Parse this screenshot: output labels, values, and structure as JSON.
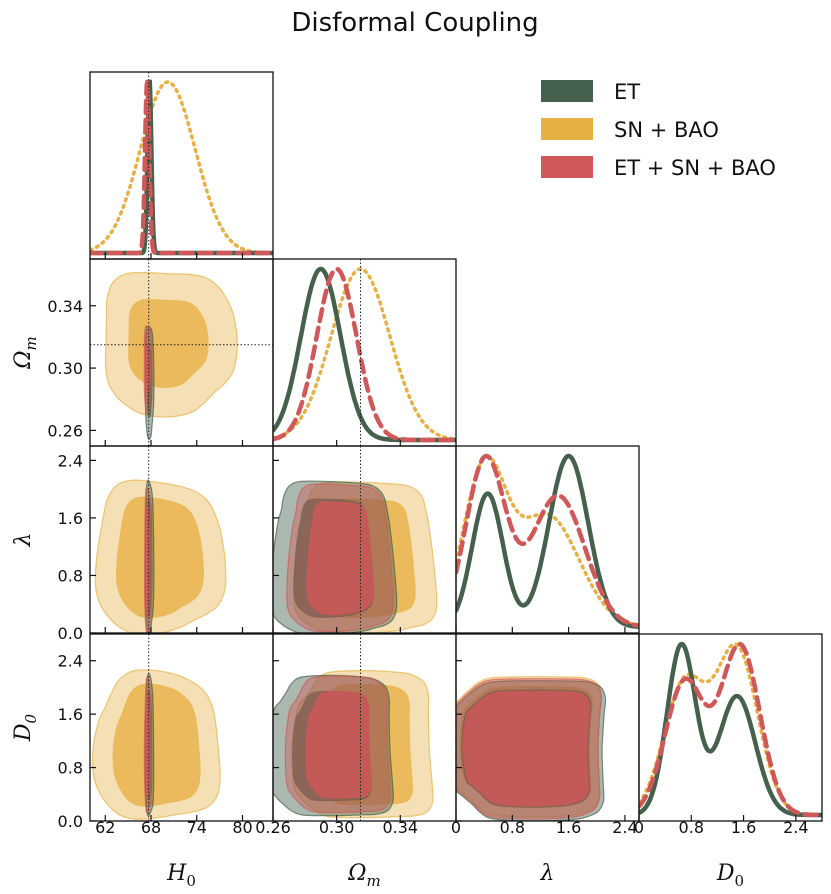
{
  "chart_data": {
    "type": "corner",
    "title": "Disformal Coupling",
    "parameters": [
      {
        "key": "H0",
        "label": "H",
        "sub": "0",
        "range": [
          60,
          84
        ],
        "ticks": [
          62,
          68,
          74,
          80
        ],
        "tick_labels": [
          "62",
          "68",
          "74",
          "80"
        ],
        "fiducial": 67.7
      },
      {
        "key": "Om",
        "label": "Ω",
        "sub": "m",
        "range": [
          0.26,
          0.375
        ],
        "ticks": [
          0.26,
          0.3,
          0.34
        ],
        "tick_labels": [
          "0.26",
          "0.30",
          "0.34"
        ],
        "y_ticks": [
          0.26,
          0.3,
          0.34
        ],
        "y_range": [
          0.25,
          0.37
        ],
        "extra_x_ticks": [
          0.26,
          0.3,
          0.34
        ],
        "extra_x_labels": [
          "0.26",
          "0.30",
          "0.34"
        ],
        "fiducial": 0.315
      },
      {
        "key": "lambda",
        "label": "λ",
        "sub": "",
        "range": [
          0,
          2.6
        ],
        "ticks": [
          0,
          0.8,
          1.6,
          2.4
        ],
        "tick_labels": [
          "0",
          "0.8",
          "1.6",
          "2.4"
        ],
        "y_ticks": [
          0.0,
          0.8,
          1.6,
          2.4
        ],
        "y_tick_labels": [
          "0.0",
          "0.8",
          "1.6",
          "2.4"
        ]
      },
      {
        "key": "D0",
        "label": "D",
        "sub": "0",
        "range": [
          0,
          2.8
        ],
        "ticks": [
          0,
          0.8,
          1.6,
          2.4
        ],
        "tick_labels": [
          "0",
          "0.8",
          "1.6",
          "2.4"
        ],
        "y_ticks": [
          0.0,
          0.8,
          1.6,
          2.4
        ],
        "y_tick_labels": [
          "0.0",
          "0.8",
          "1.6",
          "2.4"
        ]
      }
    ],
    "x_tick_row": {
      "H0": [
        "62",
        "68",
        "74",
        "80"
      ],
      "Om": [
        "0.26",
        "0.30",
        "0.34"
      ],
      "lambda": [
        "0",
        "0.8",
        "1.6",
        "2.4"
      ],
      "D0": [
        "0",
        "0.8",
        "1.6",
        "2.4"
      ]
    },
    "y_tick_col": {
      "Om": [
        "0.26",
        "0.30",
        "0.34"
      ],
      "lambda": [
        "0.0",
        "0.8",
        "1.6",
        "2.4"
      ],
      "D0": [
        "0.0",
        "0.8",
        "1.6",
        "2.4"
      ]
    },
    "legend": {
      "position": "top-right",
      "entries": [
        {
          "name": "ET",
          "color": "#45614d"
        },
        {
          "name": "SN + BAO",
          "color": "#e7b043"
        },
        {
          "name": "ET + SN + BAO",
          "color": "#d05858"
        }
      ]
    },
    "series_colors": {
      "ET": "#45614d",
      "SN + BAO": "#e7b043",
      "ET + SN + BAO": "#d05858"
    },
    "marginals": {
      "H0": {
        "ET": {
          "center": 67.8,
          "sigma": 0.25
        },
        "SN + BAO": {
          "center": 70.2,
          "sigma": 3.6
        },
        "ET + SN + BAO": {
          "center": 67.5,
          "sigma": 0.28
        }
      },
      "Om": {
        "ET": {
          "center": 0.29,
          "sigma": 0.0125
        },
        "SN + BAO": {
          "center": 0.315,
          "sigma": 0.0185
        },
        "ET + SN + BAO": {
          "center": 0.3,
          "sigma": 0.0125
        }
      },
      "lambda": {
        "ET": {
          "peaks": [
            [
              0.45,
              0.22,
              0.78
            ],
            [
              1.6,
              0.28,
              1.0
            ]
          ]
        },
        "SN + BAO": {
          "peaks": [
            [
              0.4,
              0.3,
              1.0
            ],
            [
              1.3,
              0.45,
              0.72
            ]
          ]
        },
        "ET + SN + BAO": {
          "peaks": [
            [
              0.42,
              0.28,
              0.97
            ],
            [
              1.45,
              0.38,
              0.76
            ]
          ]
        }
      },
      "D0": {
        "ET": {
          "peaks": [
            [
              0.65,
              0.22,
              1.0
            ],
            [
              1.5,
              0.28,
              0.7
            ]
          ]
        },
        "SN + BAO": {
          "peaks": [
            [
              0.7,
              0.32,
              0.72
            ],
            [
              1.5,
              0.32,
              0.9
            ]
          ]
        },
        "ET + SN + BAO": {
          "peaks": [
            [
              0.7,
              0.3,
              0.75
            ],
            [
              1.55,
              0.3,
              0.95
            ]
          ]
        }
      }
    },
    "contours_note": "68% and 95% credible regions for each dataset in every parameter pair"
  }
}
